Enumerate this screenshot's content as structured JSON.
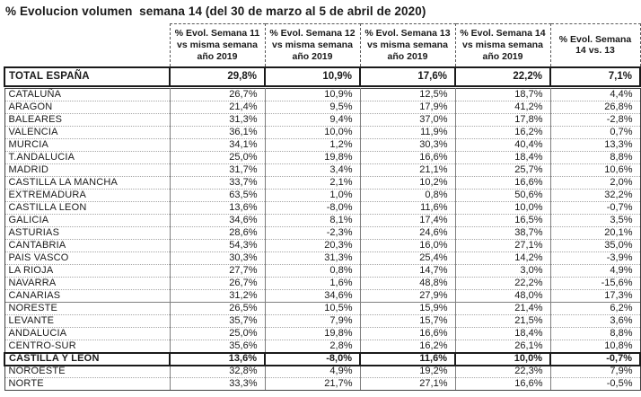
{
  "title": "% Evolucion volumen  semana 14 (del 30 de marzo al 5 de abril de 2020)",
  "colors": {
    "background": "#ffffff",
    "text": "#1a1a1a",
    "strong_border": "#1a1a1a",
    "column_border": "#7f7f7f",
    "row_separator": "#a6a6a6"
  },
  "table": {
    "headers": [
      "% Evol. Semana 11  vs misma semana año 2019",
      "% Evol. Semana 12  vs misma semana año 2019",
      "% Evol. Semana 13  vs misma semana año 2019",
      "% Evol. Semana 14  vs misma semana año 2019",
      "% Evol. Semana 14 vs. 13"
    ],
    "total_row": {
      "label": "TOTAL ESPAÑA",
      "values": [
        "29,8%",
        "10,9%",
        "17,6%",
        "22,2%",
        "7,1%"
      ]
    },
    "rows": [
      {
        "label": "CATALUÑA",
        "values": [
          "26,7%",
          "10,9%",
          "12,5%",
          "18,7%",
          "4,4%"
        ]
      },
      {
        "label": "ARAGON",
        "values": [
          "21,4%",
          "9,5%",
          "17,9%",
          "41,2%",
          "26,8%"
        ]
      },
      {
        "label": "BALEARES",
        "values": [
          "31,3%",
          "9,4%",
          "37,0%",
          "17,8%",
          "-2,8%"
        ]
      },
      {
        "label": "VALENCIA",
        "values": [
          "36,1%",
          "10,0%",
          "11,9%",
          "16,2%",
          "0,7%"
        ]
      },
      {
        "label": "MURCIA",
        "values": [
          "34,1%",
          "1,2%",
          "30,3%",
          "40,4%",
          "13,3%"
        ]
      },
      {
        "label": "T.ANDALUCIA",
        "values": [
          "25,0%",
          "19,8%",
          "16,6%",
          "18,4%",
          "8,8%"
        ]
      },
      {
        "label": "MADRID",
        "values": [
          "31,7%",
          "3,4%",
          "21,1%",
          "25,7%",
          "10,6%"
        ]
      },
      {
        "label": "CASTILLA LA MANCHA",
        "values": [
          "33,7%",
          "2,1%",
          "10,2%",
          "16,6%",
          "2,0%"
        ]
      },
      {
        "label": "EXTREMADURA",
        "values": [
          "63,5%",
          "1,0%",
          "0,8%",
          "50,6%",
          "32,2%"
        ]
      },
      {
        "label": "CASTILLA LEON",
        "values": [
          "13,6%",
          "-8,0%",
          "11,6%",
          "10,0%",
          "-0,7%"
        ]
      },
      {
        "label": "GALICIA",
        "values": [
          "34,6%",
          "8,1%",
          "17,4%",
          "16,5%",
          "3,5%"
        ]
      },
      {
        "label": "ASTURIAS",
        "values": [
          "28,6%",
          "-2,3%",
          "24,6%",
          "38,7%",
          "20,1%"
        ]
      },
      {
        "label": "CANTABRIA",
        "values": [
          "54,3%",
          "20,3%",
          "16,0%",
          "27,1%",
          "35,0%"
        ]
      },
      {
        "label": "PAIS VASCO",
        "values": [
          "30,3%",
          "31,3%",
          "25,4%",
          "14,2%",
          "-3,9%"
        ]
      },
      {
        "label": "LA RIOJA",
        "values": [
          "27,7%",
          "0,8%",
          "14,7%",
          "3,0%",
          "4,9%"
        ]
      },
      {
        "label": "NAVARRA",
        "values": [
          "26,7%",
          "1,6%",
          "48,8%",
          "22,2%",
          "-15,6%"
        ]
      },
      {
        "label": "CANARIAS",
        "values": [
          "31,2%",
          "34,6%",
          "27,9%",
          "48,0%",
          "17,3%"
        ]
      },
      {
        "label": "NORESTE",
        "values": [
          "26,5%",
          "10,5%",
          "15,9%",
          "21,4%",
          "6,2%"
        ],
        "section_break": true
      },
      {
        "label": "LEVANTE",
        "values": [
          "35,7%",
          "7,9%",
          "15,7%",
          "21,5%",
          "3,6%"
        ]
      },
      {
        "label": "ANDALUCIA",
        "values": [
          "25,0%",
          "19,8%",
          "16,6%",
          "18,4%",
          "8,8%"
        ]
      },
      {
        "label": "CENTRO-SUR",
        "values": [
          "35,6%",
          "2,8%",
          "16,2%",
          "26,1%",
          "10,8%"
        ]
      },
      {
        "label": "CASTILLA Y LEON",
        "values": [
          "13,6%",
          "-8,0%",
          "11,6%",
          "10,0%",
          "-0,7%"
        ],
        "bold": true
      },
      {
        "label": "NOROESTE",
        "values": [
          "32,8%",
          "4,9%",
          "19,2%",
          "22,3%",
          "7,9%"
        ]
      },
      {
        "label": "NORTE",
        "values": [
          "33,3%",
          "21,7%",
          "27,1%",
          "16,6%",
          "-0,5%"
        ]
      }
    ]
  }
}
